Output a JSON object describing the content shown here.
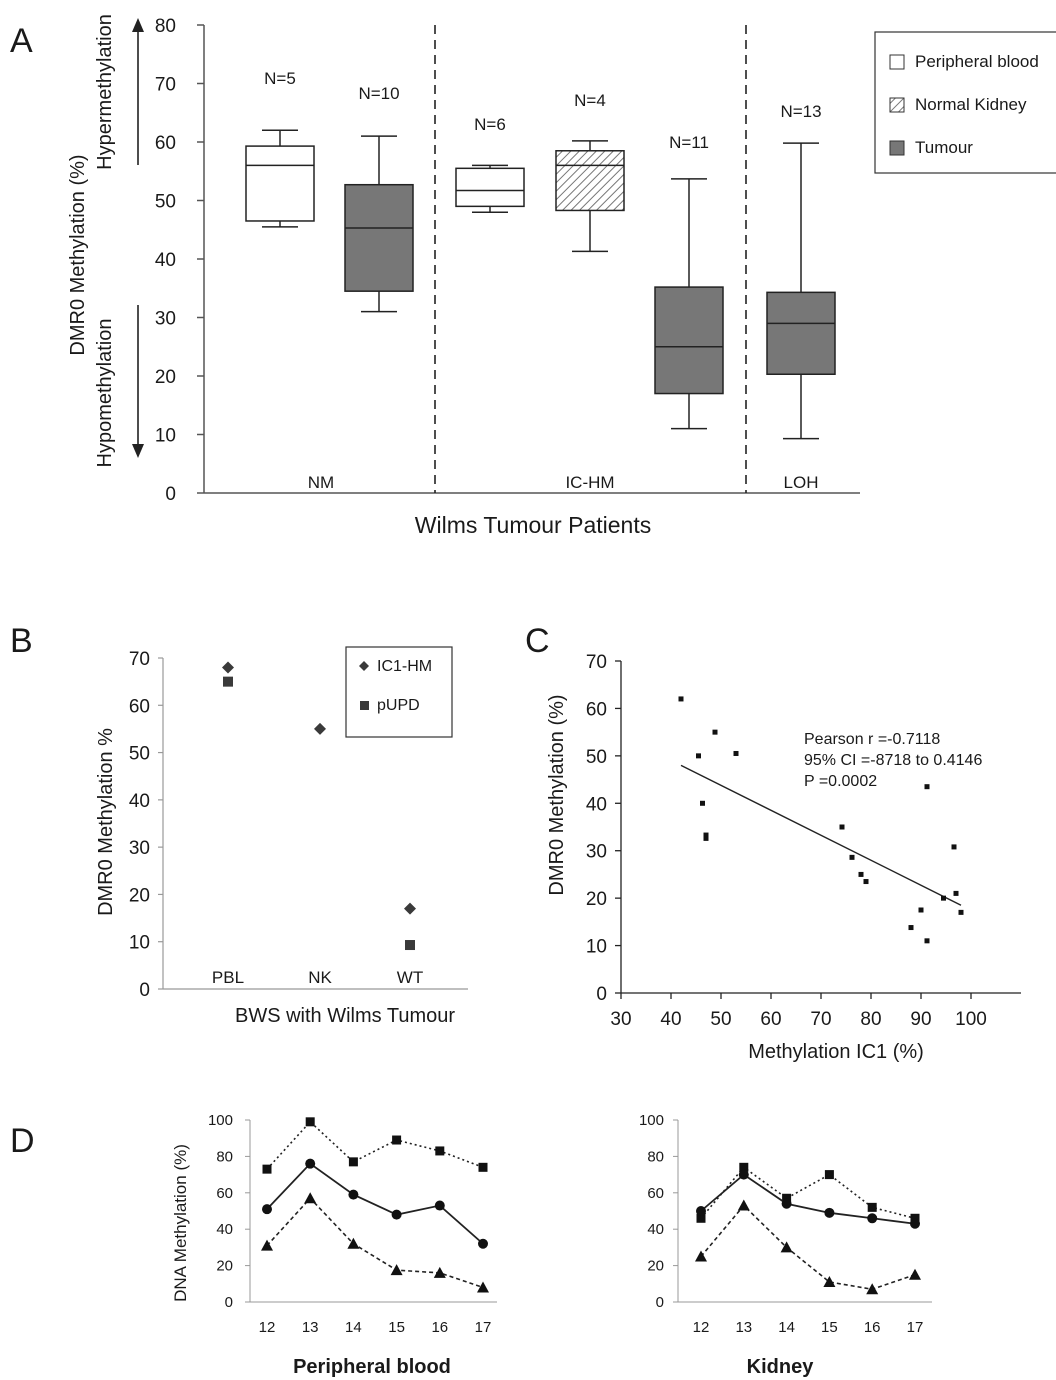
{
  "panels": {
    "a": "A",
    "b": "B",
    "c": "C",
    "d": "D"
  },
  "chart_data": [
    {
      "panel": "A",
      "type": "box",
      "xlabel": "Wilms Tumour Patients",
      "ylabel": "DMR0 Methylation (%)",
      "ylim": [
        0,
        80
      ],
      "yticks": [
        0,
        10,
        20,
        30,
        40,
        50,
        60,
        70,
        80
      ],
      "arrow_labels": {
        "up": "Hypermethylation",
        "down": "Hypomethylation"
      },
      "groups": [
        "NM",
        "IC-HM",
        "LOH"
      ],
      "legend": {
        "position": "top-right",
        "entries": [
          {
            "name": "Peripheral blood",
            "fill": "#ffffff"
          },
          {
            "name": "Normal Kidney",
            "fill": "hatched"
          },
          {
            "name": "Tumour",
            "fill": "#777777"
          }
        ]
      },
      "boxes": [
        {
          "group": "NM",
          "series": "Peripheral blood",
          "n_label": "N=5",
          "min": 45.5,
          "q1": 46.5,
          "median": 56,
          "q3": 59.3,
          "max": 62
        },
        {
          "group": "NM",
          "series": "Tumour",
          "n_label": "N=10",
          "min": 31,
          "q1": 34.5,
          "median": 45.3,
          "q3": 52.7,
          "max": 61
        },
        {
          "group": "IC-HM",
          "series": "Peripheral blood",
          "n_label": "N=6",
          "min": 48,
          "q1": 49,
          "median": 51.7,
          "q3": 55.5,
          "max": 56
        },
        {
          "group": "IC-HM",
          "series": "Normal Kidney",
          "n_label": "N=4",
          "min": 41.3,
          "q1": 48.3,
          "median": 56,
          "q3": 58.5,
          "max": 60.2
        },
        {
          "group": "IC-HM",
          "series": "Tumour",
          "n_label": "N=11",
          "min": 11,
          "q1": 17,
          "median": 25,
          "q3": 35.2,
          "max": 53.7
        },
        {
          "group": "LOH",
          "series": "Tumour",
          "n_label": "N=13",
          "min": 9.3,
          "q1": 20.3,
          "median": 29,
          "q3": 34.3,
          "max": 59.8
        }
      ]
    },
    {
      "panel": "B",
      "type": "scatter",
      "xlabel": "BWS with Wilms Tumour",
      "ylabel": "DMR0 Methylation %",
      "ylim": [
        0,
        70
      ],
      "yticks": [
        0,
        10,
        20,
        30,
        40,
        50,
        60,
        70
      ],
      "categories": [
        "PBL",
        "NK",
        "WT"
      ],
      "legend": {
        "position": "top-right"
      },
      "series": [
        {
          "name": "IC1-HM",
          "marker": "diamond",
          "values": [
            68,
            55,
            17
          ]
        },
        {
          "name": "pUPD",
          "marker": "square",
          "values": [
            65,
            null,
            9.3
          ]
        }
      ]
    },
    {
      "panel": "C",
      "type": "scatter",
      "xlabel": "Methylation IC1 (%)",
      "ylabel": "DMR0 Methylation (%)",
      "xlim": [
        30,
        110
      ],
      "xticks": [
        30,
        40,
        50,
        60,
        70,
        80,
        90,
        100
      ],
      "ylim": [
        0,
        70
      ],
      "yticks": [
        0,
        10,
        20,
        30,
        40,
        50,
        60,
        70
      ],
      "stats": [
        "Pearson r =-0.7118",
        "95% CI =-8718 to 0.4146",
        "P =0.0002"
      ],
      "points": [
        [
          42,
          62
        ],
        [
          45.5,
          50
        ],
        [
          46.3,
          40
        ],
        [
          47,
          33.3
        ],
        [
          47,
          32.6
        ],
        [
          48.8,
          55
        ],
        [
          53,
          50.5
        ],
        [
          74.2,
          35
        ],
        [
          76.2,
          28.6
        ],
        [
          78,
          25
        ],
        [
          79,
          23.5
        ],
        [
          88,
          13.8
        ],
        [
          90,
          17.5
        ],
        [
          91.2,
          11
        ],
        [
          91.2,
          43.5
        ],
        [
          94.5,
          20
        ],
        [
          96.6,
          30.8
        ],
        [
          97,
          21
        ],
        [
          98,
          17
        ]
      ],
      "trendline": {
        "x": [
          42,
          98
        ],
        "y": [
          48,
          18.5
        ]
      }
    },
    {
      "panel": "D-left",
      "type": "line",
      "title": "Peripheral blood",
      "ylabel": "DNA Methylation (%)",
      "ylim": [
        0,
        100
      ],
      "yticks": [
        0,
        20,
        40,
        60,
        80,
        100
      ],
      "x": [
        "12",
        "13",
        "14",
        "15",
        "16",
        "17"
      ],
      "series": [
        {
          "marker": "square",
          "style": "dotted",
          "values": [
            73,
            99,
            77,
            89,
            83,
            74
          ]
        },
        {
          "marker": "circle",
          "style": "solid",
          "values": [
            51,
            76,
            59,
            48,
            53,
            32
          ]
        },
        {
          "marker": "triangle",
          "style": "dotted",
          "values": [
            31,
            57,
            32,
            17.5,
            16,
            8
          ]
        }
      ]
    },
    {
      "panel": "D-right",
      "type": "line",
      "title": "Kidney",
      "ylabel": "",
      "ylim": [
        0,
        100
      ],
      "yticks": [
        0,
        20,
        40,
        60,
        80,
        100
      ],
      "x": [
        "12",
        "13",
        "14",
        "15",
        "16",
        "17"
      ],
      "series": [
        {
          "marker": "square",
          "style": "dotted",
          "values": [
            46,
            74,
            57,
            70,
            52,
            46
          ]
        },
        {
          "marker": "circle",
          "style": "solid",
          "values": [
            50,
            70,
            54,
            49,
            46,
            43
          ]
        },
        {
          "marker": "triangle",
          "style": "dotted",
          "values": [
            25,
            53,
            30,
            11,
            7,
            15
          ]
        }
      ]
    }
  ],
  "colors": {
    "tumour": "#777777",
    "marker": "#3a3a3a",
    "axis": "#555555"
  }
}
